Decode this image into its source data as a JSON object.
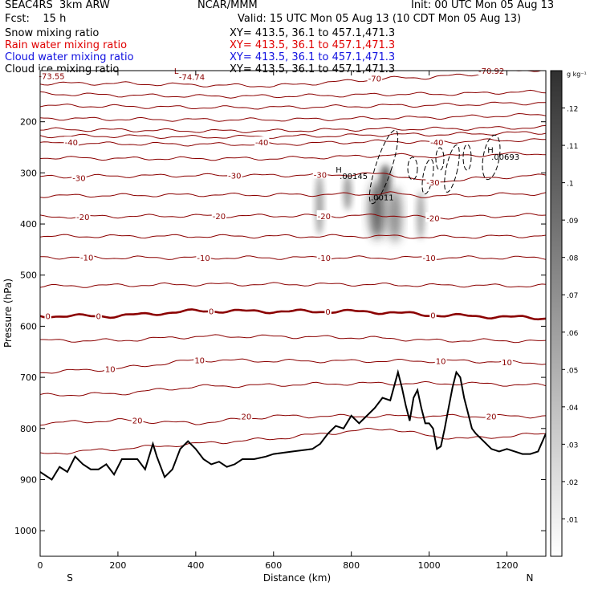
{
  "header": {
    "project": "SEAC4RS",
    "model": "3km ARW",
    "center": "NCAR/MMM",
    "init": "Init: 00 UTC Mon 05 Aug 13",
    "fcst_label": "Fcst:",
    "fcst_value": "15 h",
    "valid": "Valid: 15 UTC Mon 05 Aug 13 (10 CDT Mon 05 Aug 13)"
  },
  "fields": [
    {
      "label": "Snow mixing ratio",
      "xy": "XY= 413.5, 36.1 to 457.1,471.3",
      "color": "#000000"
    },
    {
      "label": "Rain water mixing ratio",
      "xy": "XY= 413.5, 36.1 to 457.1,471.3",
      "color": "#e00000"
    },
    {
      "label": "Cloud water mixing ratio",
      "xy": "XY= 413.5, 36.1 to 457.1,471.3",
      "color": "#1010e0"
    },
    {
      "label": "Cloud ice mixing ratio",
      "xy": "XY= 413.5, 36.1 to 457.1,471.3",
      "color": "#000000"
    }
  ],
  "chart_data": {
    "type": "contour cross-section",
    "xlabel": "Distance (km)",
    "ylabel": "Pressure (hPa)",
    "xlim": [
      0,
      1300
    ],
    "ylim": [
      100,
      1050
    ],
    "xticks": [
      0,
      200,
      400,
      600,
      800,
      1000,
      1200
    ],
    "yticks": [
      200,
      300,
      400,
      500,
      600,
      700,
      800,
      900,
      1000
    ],
    "x_endpoints": {
      "left": "S",
      "right": "N"
    },
    "temperature_contours_C": {
      "color": "#8b0000",
      "levels": [
        -70,
        -65,
        -60,
        -55,
        -50,
        -45,
        -40,
        -35,
        -30,
        -25,
        -20,
        -15,
        -10,
        -5,
        0,
        5,
        10,
        15,
        20,
        25
      ],
      "labels": [
        {
          "text": "-73.55",
          "x": 30,
          "p": 110
        },
        {
          "text": "-74.74",
          "x": 390,
          "p": 112
        },
        {
          "text": "-70",
          "x": 860,
          "p": 115
        },
        {
          "text": "-70.92",
          "x": 1160,
          "p": 100
        },
        {
          "text": "L",
          "x": 350,
          "p": 100
        },
        {
          "text": "-40",
          "x": 80,
          "p": 240
        },
        {
          "text": "-40",
          "x": 570,
          "p": 240
        },
        {
          "text": "-40",
          "x": 1020,
          "p": 240
        },
        {
          "text": "-30",
          "x": 100,
          "p": 310
        },
        {
          "text": "-30",
          "x": 500,
          "p": 305
        },
        {
          "text": "-30",
          "x": 720,
          "p": 303
        },
        {
          "text": "-30",
          "x": 1010,
          "p": 318
        },
        {
          "text": "-20",
          "x": 110,
          "p": 386
        },
        {
          "text": "-20",
          "x": 460,
          "p": 384
        },
        {
          "text": "-20",
          "x": 730,
          "p": 384
        },
        {
          "text": "-20",
          "x": 1010,
          "p": 388
        },
        {
          "text": "-10",
          "x": 120,
          "p": 465
        },
        {
          "text": "-10",
          "x": 420,
          "p": 466
        },
        {
          "text": "-10",
          "x": 730,
          "p": 466
        },
        {
          "text": "-10",
          "x": 1000,
          "p": 466
        },
        {
          "text": "0",
          "x": 20,
          "p": 580
        },
        {
          "text": "0",
          "x": 150,
          "p": 580
        },
        {
          "text": "0",
          "x": 440,
          "p": 570
        },
        {
          "text": "0",
          "x": 740,
          "p": 571
        },
        {
          "text": "0",
          "x": 1010,
          "p": 578
        },
        {
          "text": "10",
          "x": 180,
          "p": 683
        },
        {
          "text": "10",
          "x": 410,
          "p": 666
        },
        {
          "text": "10",
          "x": 1030,
          "p": 668
        },
        {
          "text": "10",
          "x": 1200,
          "p": 670
        },
        {
          "text": "20",
          "x": 250,
          "p": 784
        },
        {
          "text": "20",
          "x": 530,
          "p": 776
        },
        {
          "text": "20",
          "x": 1160,
          "p": 776
        }
      ]
    },
    "maxima_labels": [
      {
        "text": "H",
        "x": 760,
        "p": 293
      },
      {
        "text": ".00145",
        "x": 770,
        "p": 306
      },
      {
        "text": "H",
        "x": 1150,
        "p": 255
      },
      {
        "text": ".00693",
        "x": 1160,
        "p": 268
      },
      {
        "text": ".0011",
        "x": 850,
        "p": 347
      }
    ],
    "terrain_pressure_hPa": {
      "x": [
        0,
        30,
        50,
        70,
        90,
        110,
        130,
        150,
        170,
        190,
        210,
        250,
        270,
        290,
        300,
        320,
        340,
        360,
        380,
        400,
        420,
        440,
        460,
        480,
        500,
        520,
        550,
        580,
        600,
        650,
        700,
        720,
        740,
        760,
        780,
        800,
        820,
        840,
        860,
        880,
        900,
        920,
        930,
        940,
        950,
        960,
        970,
        980,
        990,
        1000,
        1010,
        1020,
        1030,
        1040,
        1050,
        1060,
        1070,
        1080,
        1090,
        1100,
        1110,
        1120,
        1140,
        1160,
        1180,
        1200,
        1220,
        1240,
        1260,
        1280,
        1300
      ],
      "p": [
        885,
        900,
        875,
        885,
        855,
        870,
        880,
        880,
        870,
        890,
        860,
        860,
        880,
        830,
        855,
        895,
        880,
        840,
        825,
        840,
        860,
        870,
        865,
        875,
        870,
        860,
        860,
        855,
        850,
        845,
        840,
        830,
        810,
        795,
        800,
        775,
        790,
        775,
        760,
        740,
        745,
        690,
        720,
        755,
        785,
        740,
        725,
        760,
        790,
        790,
        800,
        840,
        835,
        800,
        760,
        720,
        690,
        700,
        740,
        770,
        800,
        810,
        825,
        840,
        845,
        840,
        845,
        850,
        850,
        845,
        810
      ]
    },
    "hydrometeor_shading": {
      "units": "g kg^-1",
      "max_shown": 0.13
    },
    "colorbar": {
      "units": "g kg⁻¹",
      "ticks": [
        ".01",
        ".02",
        ".03",
        ".04",
        ".05",
        ".06",
        ".07",
        ".08",
        ".09",
        ".1",
        ".11",
        ".12"
      ],
      "tick_values": [
        0.01,
        0.02,
        0.03,
        0.04,
        0.05,
        0.06,
        0.07,
        0.08,
        0.09,
        0.1,
        0.11,
        0.12
      ],
      "range": [
        0.0,
        0.13
      ]
    }
  }
}
